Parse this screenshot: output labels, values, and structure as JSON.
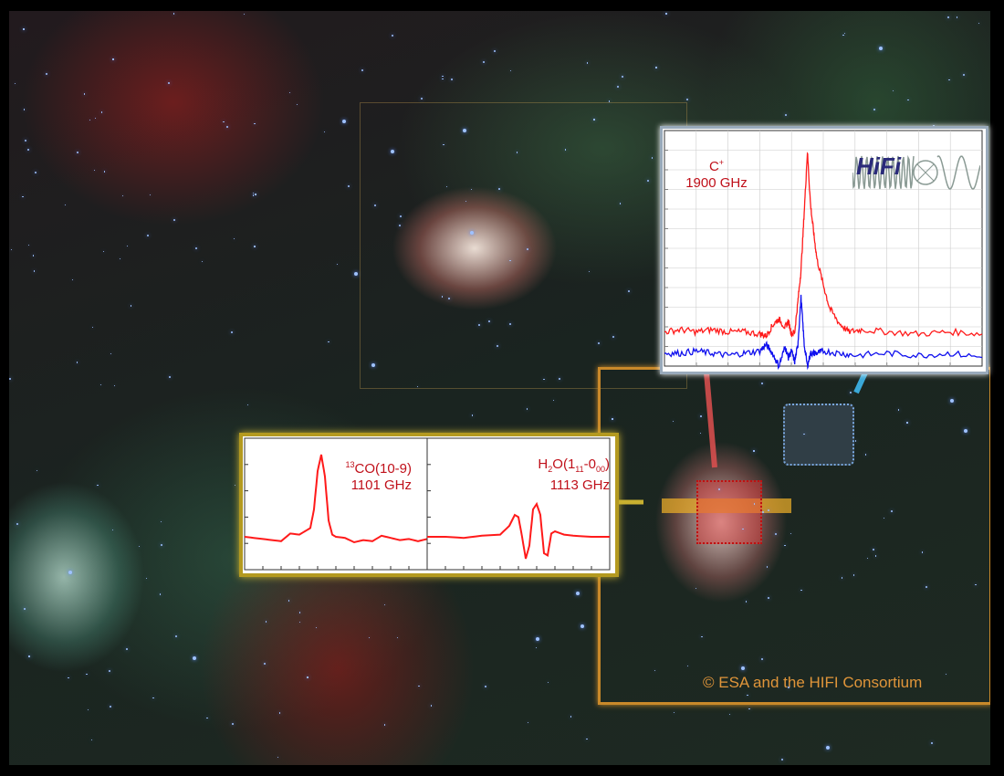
{
  "credit": "© ESA and the HIFI Consortium",
  "logo": "HiFi",
  "colors": {
    "red_line": "#ff1a1a",
    "blue_line": "#1010ee",
    "frame_orange": "#c9892a",
    "frame_yellow": "#b49a20"
  },
  "chart_data": [
    {
      "type": "line",
      "title": "C+ 1900 GHz",
      "label_species": "C",
      "label_sup": "+",
      "label_freq": "1900 GHz",
      "xlabel": "",
      "ylabel": "",
      "xlim": [
        0,
        1
      ],
      "ylim": [
        0,
        1.1
      ],
      "grid": true,
      "series": [
        {
          "name": "red",
          "color": "#ff1a1a",
          "x": [
            0,
            0.05,
            0.1,
            0.15,
            0.2,
            0.25,
            0.3,
            0.32,
            0.34,
            0.36,
            0.38,
            0.39,
            0.4,
            0.41,
            0.42,
            0.43,
            0.44,
            0.45,
            0.46,
            0.47,
            0.48,
            0.5,
            0.52,
            0.55,
            0.58,
            0.62,
            0.7,
            0.8,
            0.9,
            1
          ],
          "y": [
            0.16,
            0.17,
            0.16,
            0.17,
            0.16,
            0.16,
            0.15,
            0.14,
            0.19,
            0.22,
            0.18,
            0.21,
            0.15,
            0.16,
            0.3,
            0.45,
            0.72,
            1.0,
            0.75,
            0.62,
            0.5,
            0.38,
            0.27,
            0.2,
            0.16,
            0.17,
            0.16,
            0.15,
            0.16,
            0.15
          ]
        },
        {
          "name": "blue",
          "color": "#1010ee",
          "x": [
            0,
            0.05,
            0.1,
            0.15,
            0.2,
            0.25,
            0.3,
            0.32,
            0.34,
            0.36,
            0.38,
            0.39,
            0.4,
            0.41,
            0.42,
            0.43,
            0.44,
            0.45,
            0.46,
            0.47,
            0.48,
            0.5,
            0.55,
            0.6,
            0.7,
            0.8,
            0.9,
            1
          ],
          "y": [
            0.06,
            0.06,
            0.07,
            0.06,
            0.05,
            0.06,
            0.07,
            0.1,
            0.06,
            0.0,
            0.09,
            0.04,
            0.07,
            0.02,
            0.1,
            0.32,
            0.1,
            0.0,
            0.06,
            0.06,
            0.06,
            0.07,
            0.06,
            0.05,
            0.06,
            0.05,
            0.06,
            0.04
          ]
        }
      ]
    },
    {
      "type": "line",
      "title": "13CO(10-9) 1101 GHz",
      "label_sup": "13",
      "label_species": "CO(10-9)",
      "label_freq": "1101 GHz",
      "xlim": [
        0,
        1
      ],
      "ylim": [
        0,
        1.2
      ],
      "series": [
        {
          "name": "13CO",
          "color": "#ff1a1a",
          "x": [
            0,
            0.05,
            0.1,
            0.15,
            0.2,
            0.25,
            0.3,
            0.33,
            0.36,
            0.38,
            0.4,
            0.42,
            0.44,
            0.46,
            0.48,
            0.5,
            0.55,
            0.6,
            0.65,
            0.7,
            0.75,
            0.8,
            0.85,
            0.9,
            0.95,
            1
          ],
          "y": [
            0.3,
            0.29,
            0.28,
            0.27,
            0.26,
            0.33,
            0.32,
            0.35,
            0.38,
            0.55,
            0.9,
            1.05,
            0.85,
            0.45,
            0.32,
            0.3,
            0.29,
            0.25,
            0.27,
            0.26,
            0.31,
            0.29,
            0.27,
            0.28,
            0.26,
            0.28
          ]
        }
      ]
    },
    {
      "type": "line",
      "title": "H2O(111-000) 1113 GHz",
      "label_species": "H2O(111-000)",
      "label_freq": "1113 GHz",
      "xlim": [
        0,
        1
      ],
      "ylim": [
        0,
        1.2
      ],
      "series": [
        {
          "name": "H2O",
          "color": "#ff1a1a",
          "x": [
            0,
            0.1,
            0.2,
            0.3,
            0.4,
            0.45,
            0.48,
            0.5,
            0.52,
            0.54,
            0.56,
            0.58,
            0.6,
            0.62,
            0.64,
            0.66,
            0.68,
            0.7,
            0.75,
            0.8,
            0.9,
            1
          ],
          "y": [
            0.3,
            0.3,
            0.29,
            0.31,
            0.32,
            0.4,
            0.5,
            0.48,
            0.3,
            0.1,
            0.22,
            0.55,
            0.6,
            0.5,
            0.15,
            0.13,
            0.33,
            0.35,
            0.32,
            0.31,
            0.3,
            0.3
          ]
        }
      ]
    }
  ]
}
